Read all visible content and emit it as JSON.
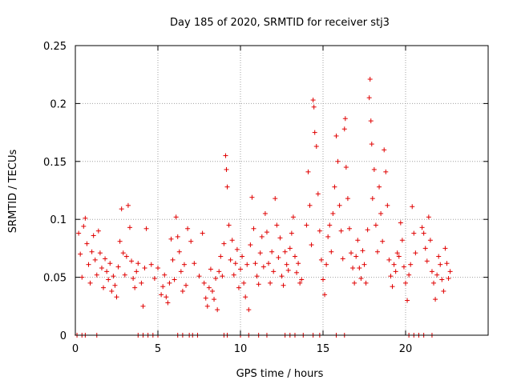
{
  "chart_data": {
    "type": "scatter",
    "title": "Day 185 of 2020, SRMTID for receiver stj3",
    "xlabel": "GPS time / hours",
    "ylabel": "SRMTID / TECUs",
    "xlim": [
      0,
      25
    ],
    "ylim": [
      0,
      0.25
    ],
    "x_ticks": [
      0,
      5,
      10,
      15,
      20
    ],
    "x_tick_labels": [
      "0",
      "5",
      "10",
      "15",
      "20"
    ],
    "y_ticks": [
      0,
      0.05,
      0.1,
      0.15,
      0.2,
      0.25
    ],
    "y_tick_labels": [
      "0",
      "0.05",
      "0.1",
      "0.15",
      "0.2",
      "0.25"
    ],
    "grid": true,
    "marker": "+",
    "series_color": "#e00000",
    "series": [
      {
        "name": "SRMTID",
        "points": [
          [
            0.1,
            0.0
          ],
          [
            0.4,
            0.0
          ],
          [
            0.6,
            0.0
          ],
          [
            1.3,
            0.0
          ],
          [
            3.8,
            0.0
          ],
          [
            4.1,
            0.0
          ],
          [
            4.4,
            0.0
          ],
          [
            4.7,
            0.0
          ],
          [
            5.0,
            0.0
          ],
          [
            6.2,
            0.0
          ],
          [
            6.5,
            0.0
          ],
          [
            6.9,
            0.0
          ],
          [
            7.1,
            0.0
          ],
          [
            7.4,
            0.0
          ],
          [
            9.0,
            0.0
          ],
          [
            9.2,
            0.0
          ],
          [
            10.0,
            0.0
          ],
          [
            10.5,
            0.0
          ],
          [
            11.1,
            0.0
          ],
          [
            11.6,
            0.0
          ],
          [
            12.7,
            0.0
          ],
          [
            13.0,
            0.0
          ],
          [
            13.3,
            0.0
          ],
          [
            13.8,
            0.0
          ],
          [
            14.4,
            0.0
          ],
          [
            14.8,
            0.0
          ],
          [
            15.8,
            0.0
          ],
          [
            16.3,
            0.0
          ],
          [
            20.2,
            0.0
          ],
          [
            20.5,
            0.0
          ],
          [
            20.8,
            0.0
          ],
          [
            21.1,
            0.0
          ],
          [
            21.6,
            0.0
          ],
          [
            0.2,
            0.088
          ],
          [
            0.3,
            0.07
          ],
          [
            0.4,
            0.05
          ],
          [
            0.5,
            0.094
          ],
          [
            0.6,
            0.101
          ],
          [
            0.7,
            0.079
          ],
          [
            0.8,
            0.061
          ],
          [
            0.9,
            0.045
          ],
          [
            1.0,
            0.072
          ],
          [
            1.1,
            0.086
          ],
          [
            1.2,
            0.065
          ],
          [
            1.3,
            0.052
          ],
          [
            1.4,
            0.09
          ],
          [
            1.5,
            0.071
          ],
          [
            1.6,
            0.058
          ],
          [
            1.7,
            0.041
          ],
          [
            1.8,
            0.066
          ],
          [
            1.9,
            0.055
          ],
          [
            2.0,
            0.048
          ],
          [
            2.1,
            0.062
          ],
          [
            2.2,
            0.038
          ],
          [
            2.3,
            0.051
          ],
          [
            2.4,
            0.043
          ],
          [
            2.5,
            0.033
          ],
          [
            2.6,
            0.059
          ],
          [
            2.7,
            0.081
          ],
          [
            2.8,
            0.109
          ],
          [
            2.9,
            0.071
          ],
          [
            3.0,
            0.052
          ],
          [
            3.1,
            0.068
          ],
          [
            3.2,
            0.112
          ],
          [
            3.3,
            0.093
          ],
          [
            3.4,
            0.064
          ],
          [
            3.5,
            0.049
          ],
          [
            3.6,
            0.041
          ],
          [
            3.7,
            0.055
          ],
          [
            3.8,
            0.062
          ],
          [
            4.0,
            0.045
          ],
          [
            4.1,
            0.025
          ],
          [
            4.2,
            0.058
          ],
          [
            4.3,
            0.092
          ],
          [
            4.6,
            0.061
          ],
          [
            4.8,
            0.049
          ],
          [
            5.0,
            0.058
          ],
          [
            5.2,
            0.035
          ],
          [
            5.3,
            0.042
          ],
          [
            5.4,
            0.052
          ],
          [
            5.5,
            0.033
          ],
          [
            5.6,
            0.028
          ],
          [
            5.7,
            0.045
          ],
          [
            5.8,
            0.083
          ],
          [
            5.9,
            0.065
          ],
          [
            6.0,
            0.048
          ],
          [
            6.1,
            0.102
          ],
          [
            6.2,
            0.085
          ],
          [
            6.3,
            0.072
          ],
          [
            6.4,
            0.055
          ],
          [
            6.5,
            0.038
          ],
          [
            6.6,
            0.061
          ],
          [
            6.7,
            0.043
          ],
          [
            6.8,
            0.092
          ],
          [
            7.0,
            0.081
          ],
          [
            7.2,
            0.062
          ],
          [
            7.5,
            0.051
          ],
          [
            7.7,
            0.088
          ],
          [
            7.8,
            0.045
          ],
          [
            7.9,
            0.032
          ],
          [
            8.0,
            0.025
          ],
          [
            8.1,
            0.041
          ],
          [
            8.2,
            0.057
          ],
          [
            8.3,
            0.038
          ],
          [
            8.4,
            0.031
          ],
          [
            8.5,
            0.049
          ],
          [
            8.6,
            0.022
          ],
          [
            8.7,
            0.055
          ],
          [
            8.8,
            0.068
          ],
          [
            8.9,
            0.051
          ],
          [
            9.0,
            0.079
          ],
          [
            9.1,
            0.155
          ],
          [
            9.15,
            0.143
          ],
          [
            9.2,
            0.128
          ],
          [
            9.3,
            0.095
          ],
          [
            9.4,
            0.065
          ],
          [
            9.5,
            0.082
          ],
          [
            9.6,
            0.052
          ],
          [
            9.7,
            0.062
          ],
          [
            9.8,
            0.074
          ],
          [
            9.9,
            0.041
          ],
          [
            10.0,
            0.057
          ],
          [
            10.1,
            0.068
          ],
          [
            10.2,
            0.045
          ],
          [
            10.3,
            0.033
          ],
          [
            10.4,
            0.061
          ],
          [
            10.5,
            0.022
          ],
          [
            10.6,
            0.078
          ],
          [
            10.7,
            0.119
          ],
          [
            10.8,
            0.092
          ],
          [
            10.9,
            0.062
          ],
          [
            11.0,
            0.051
          ],
          [
            11.1,
            0.044
          ],
          [
            11.2,
            0.071
          ],
          [
            11.3,
            0.085
          ],
          [
            11.4,
            0.059
          ],
          [
            11.5,
            0.105
          ],
          [
            11.6,
            0.089
          ],
          [
            11.7,
            0.062
          ],
          [
            11.8,
            0.045
          ],
          [
            11.9,
            0.072
          ],
          [
            12.0,
            0.055
          ],
          [
            12.1,
            0.118
          ],
          [
            12.2,
            0.095
          ],
          [
            12.3,
            0.067
          ],
          [
            12.4,
            0.084
          ],
          [
            12.5,
            0.051
          ],
          [
            12.6,
            0.043
          ],
          [
            12.7,
            0.072
          ],
          [
            12.8,
            0.061
          ],
          [
            12.9,
            0.056
          ],
          [
            13.0,
            0.075
          ],
          [
            13.1,
            0.088
          ],
          [
            13.2,
            0.102
          ],
          [
            13.3,
            0.068
          ],
          [
            13.4,
            0.054
          ],
          [
            13.5,
            0.062
          ],
          [
            13.6,
            0.045
          ],
          [
            13.7,
            0.048
          ],
          [
            14.0,
            0.095
          ],
          [
            14.1,
            0.141
          ],
          [
            14.2,
            0.112
          ],
          [
            14.3,
            0.078
          ],
          [
            14.4,
            0.203
          ],
          [
            14.45,
            0.197
          ],
          [
            14.5,
            0.175
          ],
          [
            14.6,
            0.163
          ],
          [
            14.7,
            0.122
          ],
          [
            14.8,
            0.09
          ],
          [
            14.9,
            0.065
          ],
          [
            15.0,
            0.048
          ],
          [
            15.1,
            0.035
          ],
          [
            15.2,
            0.061
          ],
          [
            15.3,
            0.085
          ],
          [
            15.4,
            0.095
          ],
          [
            15.5,
            0.072
          ],
          [
            15.6,
            0.105
          ],
          [
            15.7,
            0.128
          ],
          [
            15.8,
            0.172
          ],
          [
            15.9,
            0.15
          ],
          [
            16.0,
            0.112
          ],
          [
            16.1,
            0.09
          ],
          [
            16.2,
            0.066
          ],
          [
            16.3,
            0.178
          ],
          [
            16.35,
            0.187
          ],
          [
            16.4,
            0.145
          ],
          [
            16.5,
            0.118
          ],
          [
            16.6,
            0.092
          ],
          [
            16.7,
            0.071
          ],
          [
            16.8,
            0.058
          ],
          [
            16.9,
            0.045
          ],
          [
            17.0,
            0.068
          ],
          [
            17.1,
            0.082
          ],
          [
            17.2,
            0.058
          ],
          [
            17.3,
            0.049
          ],
          [
            17.4,
            0.073
          ],
          [
            17.5,
            0.061
          ],
          [
            17.6,
            0.045
          ],
          [
            17.7,
            0.091
          ],
          [
            17.8,
            0.205
          ],
          [
            17.85,
            0.221
          ],
          [
            17.9,
            0.185
          ],
          [
            17.95,
            0.165
          ],
          [
            18.0,
            0.118
          ],
          [
            18.1,
            0.143
          ],
          [
            18.2,
            0.095
          ],
          [
            18.3,
            0.072
          ],
          [
            18.4,
            0.128
          ],
          [
            18.5,
            0.105
          ],
          [
            18.6,
            0.081
          ],
          [
            18.7,
            0.16
          ],
          [
            18.8,
            0.141
          ],
          [
            18.9,
            0.112
          ],
          [
            19.0,
            0.065
          ],
          [
            19.1,
            0.051
          ],
          [
            19.2,
            0.042
          ],
          [
            19.3,
            0.061
          ],
          [
            19.4,
            0.055
          ],
          [
            19.5,
            0.071
          ],
          [
            19.6,
            0.068
          ],
          [
            19.7,
            0.097
          ],
          [
            19.8,
            0.082
          ],
          [
            19.9,
            0.059
          ],
          [
            20.0,
            0.045
          ],
          [
            20.1,
            0.03
          ],
          [
            20.2,
            0.052
          ],
          [
            20.3,
            0.061
          ],
          [
            20.4,
            0.111
          ],
          [
            20.5,
            0.088
          ],
          [
            20.6,
            0.071
          ],
          [
            21.0,
            0.093
          ],
          [
            21.1,
            0.088
          ],
          [
            21.2,
            0.075
          ],
          [
            21.3,
            0.064
          ],
          [
            21.4,
            0.102
          ],
          [
            21.5,
            0.082
          ],
          [
            21.6,
            0.055
          ],
          [
            21.7,
            0.045
          ],
          [
            21.8,
            0.031
          ],
          [
            21.9,
            0.052
          ],
          [
            22.0,
            0.068
          ],
          [
            22.1,
            0.061
          ],
          [
            22.2,
            0.048
          ],
          [
            22.3,
            0.038
          ],
          [
            22.4,
            0.075
          ],
          [
            22.5,
            0.062
          ],
          [
            22.6,
            0.049
          ],
          [
            22.7,
            0.055
          ]
        ]
      }
    ]
  }
}
